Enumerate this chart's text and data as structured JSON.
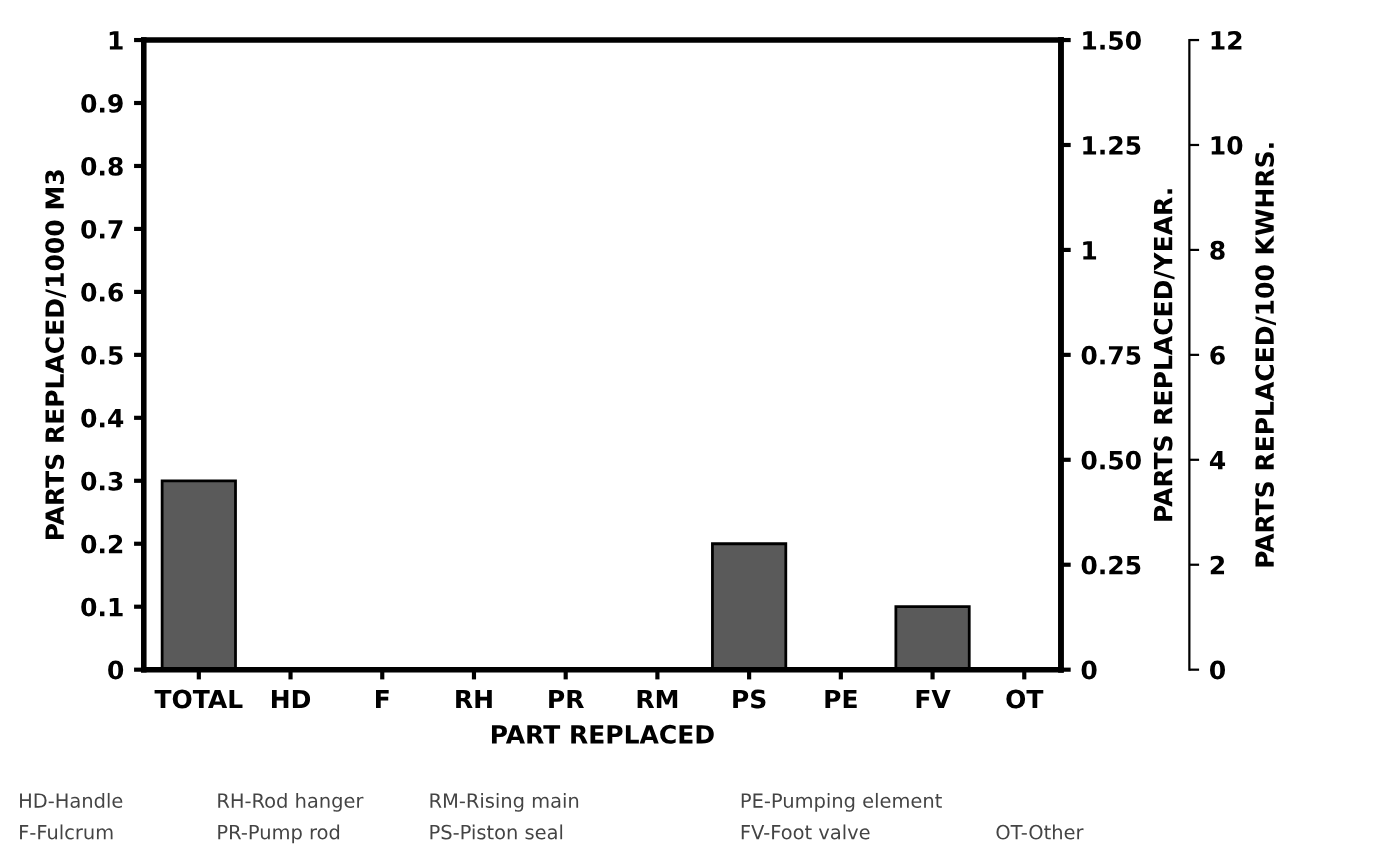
{
  "chart_data": {
    "type": "bar",
    "xlabel": "PART REPLACED",
    "ylabel": "PARTS REPLACED/1000 M3",
    "y2label": "PARTS REPLACED/YEAR.",
    "y3label": "PARTS REPLACED/100 KWHRS.",
    "categories": [
      "TOTAL",
      "HD",
      "F",
      "RH",
      "PR",
      "RM",
      "PS",
      "PE",
      "FV",
      "OT"
    ],
    "values": [
      0.3,
      0,
      0,
      0,
      0,
      0,
      0.2,
      0,
      0.1,
      0
    ],
    "color": "#5a5a5a",
    "ylim": [
      0,
      1
    ],
    "yticks": [
      0,
      0.1,
      0.2,
      0.3,
      0.4,
      0.5,
      0.6,
      0.7,
      0.8,
      0.9,
      1
    ],
    "y2lim": [
      0,
      1.5
    ],
    "y2ticks": [
      0,
      0.25,
      {
        "value": 0.5,
        "label": "0.50"
      },
      0.75,
      1,
      1.25,
      {
        "value": 1.5,
        "label": "1.50"
      }
    ],
    "y3lim": [
      0,
      12
    ],
    "y3ticks": [
      0,
      2,
      4,
      6,
      8,
      10,
      12
    ],
    "grid": false,
    "legend": false,
    "annotations": [
      "HD-Handle",
      "RH-Rod hanger",
      "RM-Rising main",
      "PE-Pumping element",
      "F-Fulcrum",
      "PR-Pump rod",
      "PS-Piston seal",
      "FV-Foot valve",
      "OT-Other"
    ]
  }
}
